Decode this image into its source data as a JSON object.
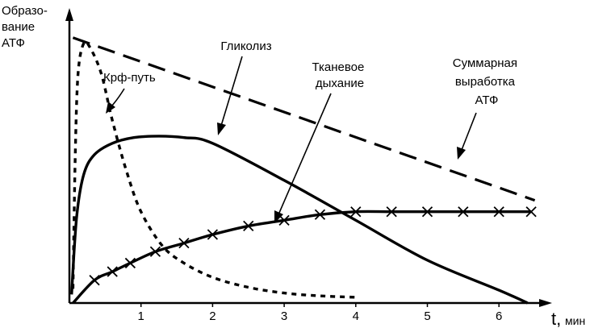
{
  "chart_data": {
    "type": "line",
    "ylabel": [
      "Образо-",
      "вание",
      "АТФ"
    ],
    "xlabel": "t,",
    "xunit": "мин",
    "xticks": [
      "1",
      "2",
      "3",
      "4",
      "5",
      "6"
    ],
    "xlim": [
      0,
      6.6
    ],
    "ylim": [
      0,
      1
    ],
    "grid": false,
    "series": [
      {
        "name": "Суммарная выработка АТФ",
        "style": "long-dash",
        "x": [
          0.05,
          6.5
        ],
        "y": [
          0.93,
          0.36
        ]
      },
      {
        "name": "Гликолиз",
        "style": "solid",
        "x": [
          0.03,
          0.1,
          0.2,
          0.35,
          0.6,
          0.9,
          1.25,
          1.6,
          2.0,
          3.0,
          4.0,
          5.0,
          6.0,
          6.4
        ],
        "y": [
          0.03,
          0.3,
          0.45,
          0.52,
          0.56,
          0.58,
          0.585,
          0.58,
          0.56,
          0.43,
          0.29,
          0.15,
          0.045,
          0.0
        ]
      },
      {
        "name": "Крф-путь",
        "style": "short-dash",
        "x": [
          0.05,
          0.08,
          0.12,
          0.2,
          0.3,
          0.45,
          0.6,
          0.8,
          1.0,
          1.3,
          1.6,
          2.0,
          2.5,
          3.0,
          3.5,
          4.0
        ],
        "y": [
          0.05,
          0.5,
          0.8,
          0.91,
          0.89,
          0.8,
          0.64,
          0.46,
          0.32,
          0.2,
          0.14,
          0.09,
          0.055,
          0.035,
          0.025,
          0.02
        ]
      },
      {
        "name": "Тканевое дыхание",
        "style": "solid-x",
        "x": [
          0.05,
          0.35,
          0.6,
          0.85,
          1.2,
          1.6,
          2.0,
          2.5,
          3.0,
          3.5,
          4.0,
          4.5,
          5.0,
          5.5,
          6.0,
          6.45
        ],
        "y": [
          0.0,
          0.08,
          0.11,
          0.14,
          0.18,
          0.21,
          0.24,
          0.27,
          0.29,
          0.31,
          0.32,
          0.32,
          0.32,
          0.32,
          0.32,
          0.32
        ]
      }
    ],
    "markers_x": [
      0.35,
      0.6,
      0.85,
      1.2,
      1.6,
      2.0,
      2.5,
      3.0,
      3.5,
      4.0,
      4.5,
      5.0,
      5.5,
      6.0,
      6.45
    ],
    "annotations": [
      {
        "text": [
          "Гликолиз"
        ],
        "target_series": "Гликолиз"
      },
      {
        "text": [
          "Тканевое",
          "дыхание"
        ],
        "target_series": "Тканевое дыхание"
      },
      {
        "text": [
          "Суммарная",
          "выработка",
          "АТФ"
        ],
        "target_series": "Суммарная выработка АТФ"
      },
      {
        "text": [
          "Крф-путь"
        ],
        "target_series": "Крф-путь"
      }
    ]
  }
}
